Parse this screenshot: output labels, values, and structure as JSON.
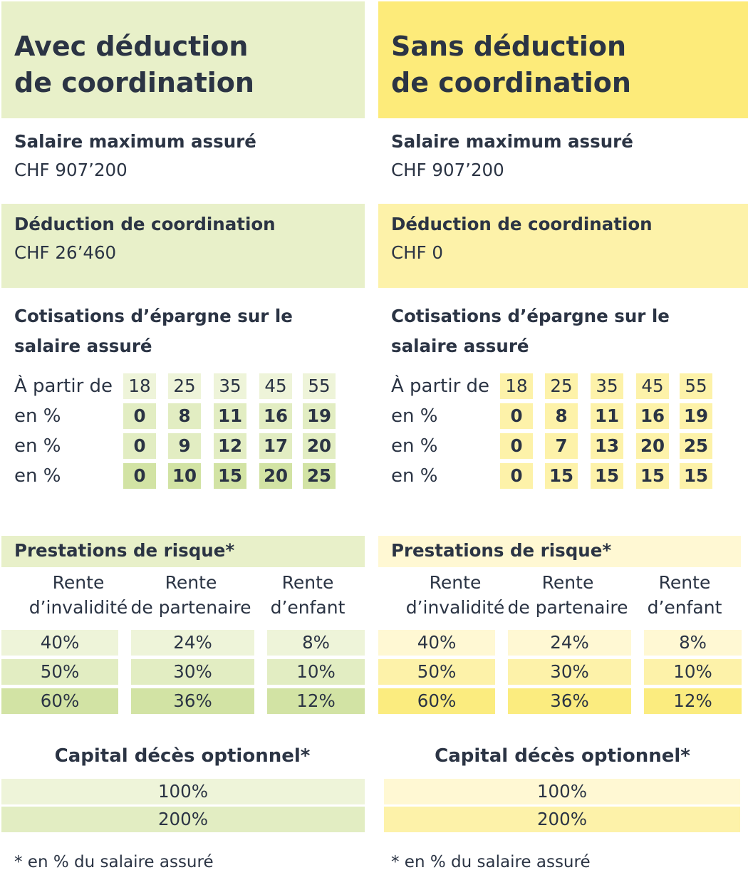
{
  "colors": {
    "green_light": "#eef4d9",
    "green_mid": "#e2edc2",
    "green_dark": "#d2e3a4",
    "green_header": "#e8f0c9",
    "yellow_light": "#fff8d3",
    "yellow_mid": "#fdf2a9",
    "yellow_dark": "#fbec7f",
    "yellow_header": "#fdeb7a",
    "text": "#2b3444"
  },
  "left": {
    "title_line1": "Avec déduction",
    "title_line2": "de coordination",
    "salary_label": "Salaire maximum assuré",
    "salary_value": "CHF 907’200",
    "deduction_label": "Déduction de coordination",
    "deduction_value": "CHF 26’460",
    "contrib_label_line1": "Cotisations d’épargne sur le",
    "contrib_label_line2": "salaire assuré",
    "age_label": "À partir de",
    "ages": [
      "18",
      "25",
      "35",
      "45",
      "55"
    ],
    "rows": [
      {
        "label": "en %",
        "values": [
          "0",
          "8",
          "11",
          "16",
          "19"
        ]
      },
      {
        "label": "en %",
        "values": [
          "0",
          "9",
          "12",
          "17",
          "20"
        ]
      },
      {
        "label": "en %",
        "values": [
          "0",
          "10",
          "15",
          "20",
          "25"
        ]
      }
    ],
    "risk_title": "Prestations de risque*",
    "risk_heads": [
      {
        "line1": "Rente",
        "line2": "d’invalidité"
      },
      {
        "line1": "Rente",
        "line2": "de partenaire"
      },
      {
        "line1": "Rente",
        "line2": "d’enfant"
      }
    ],
    "risk_rows": [
      [
        "40%",
        "24%",
        "8%"
      ],
      [
        "50%",
        "30%",
        "10%"
      ],
      [
        "60%",
        "36%",
        "12%"
      ]
    ],
    "capital_title": "Capital décès optionnel*",
    "capital_rows": [
      "100%",
      "200%"
    ],
    "footnote": "* en % du salaire assuré"
  },
  "right": {
    "title_line1": "Sans déduction",
    "title_line2": "de coordination",
    "salary_label": "Salaire maximum assuré",
    "salary_value": "CHF 907’200",
    "deduction_label": "Déduction de coordination",
    "deduction_value": "CHF 0",
    "contrib_label_line1": "Cotisations d’épargne sur le",
    "contrib_label_line2": "salaire assuré",
    "age_label": "À partir de",
    "ages": [
      "18",
      "25",
      "35",
      "45",
      "55"
    ],
    "rows": [
      {
        "label": "en %",
        "values": [
          "0",
          "8",
          "11",
          "16",
          "19"
        ]
      },
      {
        "label": "en %",
        "values": [
          "0",
          "7",
          "13",
          "20",
          "25"
        ]
      },
      {
        "label": "en %",
        "values": [
          "0",
          "15",
          "15",
          "15",
          "15"
        ]
      }
    ],
    "risk_title": "Prestations de risque*",
    "risk_heads": [
      {
        "line1": "Rente",
        "line2": "d’invalidité"
      },
      {
        "line1": "Rente",
        "line2": "de partenaire"
      },
      {
        "line1": "Rente",
        "line2": "d’enfant"
      }
    ],
    "risk_rows": [
      [
        "40%",
        "24%",
        "8%"
      ],
      [
        "50%",
        "30%",
        "10%"
      ],
      [
        "60%",
        "36%",
        "12%"
      ]
    ],
    "capital_title": "Capital décès optionnel*",
    "capital_rows": [
      "100%",
      "200%"
    ],
    "footnote": "* en % du salaire assuré"
  }
}
